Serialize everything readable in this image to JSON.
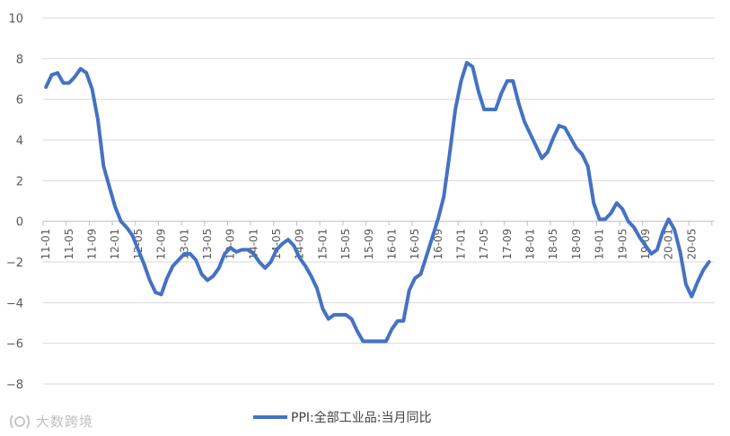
{
  "chart_data": {
    "type": "line",
    "title": "",
    "xlabel": "",
    "ylabel": "",
    "ylim": [
      -8,
      10
    ],
    "yticks": [
      -8,
      -6,
      -4,
      -2,
      0,
      2,
      4,
      6,
      8,
      10
    ],
    "ytick_labels": [
      "−8",
      "−6",
      "−4",
      "−2",
      "0",
      "2",
      "4",
      "6",
      "8",
      "10"
    ],
    "x_start": "2011-01",
    "x_tick_labels": [
      "11-01",
      "11-05",
      "11-09",
      "12-01",
      "12-05",
      "12-09",
      "13-01",
      "13-05",
      "13-09",
      "14-01",
      "14-05",
      "14-09",
      "15-01",
      "15-05",
      "15-09",
      "16-01",
      "16-05",
      "16-09",
      "17-01",
      "17-05",
      "17-09",
      "18-01",
      "18-05",
      "18-09",
      "19-01",
      "19-05",
      "19-09",
      "20-01",
      "20-05"
    ],
    "grid": true,
    "legend_position": "bottom",
    "series": [
      {
        "name": "PPI:全部工业品:当月同比",
        "color": "#4472C4",
        "values": [
          6.6,
          7.2,
          7.3,
          6.8,
          6.8,
          7.1,
          7.5,
          7.3,
          6.5,
          5.0,
          2.7,
          1.7,
          0.7,
          0.0,
          -0.3,
          -0.7,
          -1.4,
          -2.1,
          -2.9,
          -3.5,
          -3.6,
          -2.8,
          -2.2,
          -1.9,
          -1.6,
          -1.6,
          -1.9,
          -2.6,
          -2.9,
          -2.7,
          -2.3,
          -1.6,
          -1.3,
          -1.5,
          -1.4,
          -1.4,
          -1.6,
          -2.0,
          -2.3,
          -2.0,
          -1.4,
          -1.1,
          -0.9,
          -1.2,
          -1.8,
          -2.2,
          -2.7,
          -3.3,
          -4.3,
          -4.8,
          -4.6,
          -4.6,
          -4.6,
          -4.8,
          -5.4,
          -5.9,
          -5.9,
          -5.9,
          -5.9,
          -5.9,
          -5.3,
          -4.9,
          -4.9,
          -3.4,
          -2.8,
          -2.6,
          -1.7,
          -0.8,
          0.1,
          1.2,
          3.3,
          5.5,
          6.9,
          7.8,
          7.6,
          6.4,
          5.5,
          5.5,
          5.5,
          6.3,
          6.9,
          6.9,
          5.8,
          4.9,
          4.3,
          3.7,
          3.1,
          3.4,
          4.1,
          4.7,
          4.6,
          4.1,
          3.6,
          3.3,
          2.7,
          0.9,
          0.1,
          0.1,
          0.4,
          0.9,
          0.6,
          0.0,
          -0.3,
          -0.8,
          -1.2,
          -1.6,
          -1.4,
          -0.5,
          0.1,
          -0.4,
          -1.5,
          -3.1,
          -3.7,
          -3.0,
          -2.4,
          -2.0
        ]
      }
    ]
  },
  "legend": {
    "label": "PPI:全部工业品:当月同比"
  },
  "watermark": {
    "text": "大数跨境"
  }
}
